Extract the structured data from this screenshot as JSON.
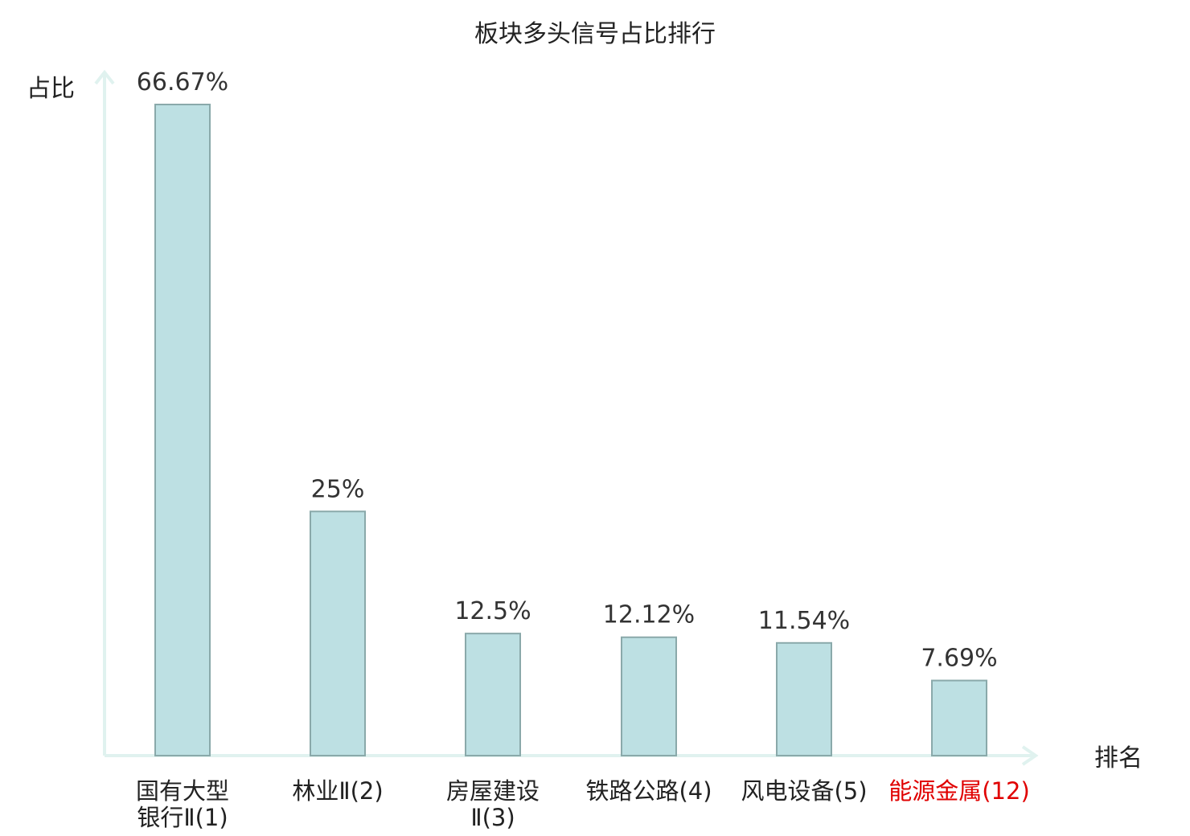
{
  "chart_data": {
    "type": "bar",
    "title": "板块多头信号占比排行",
    "xlabel": "排名",
    "ylabel": "占比",
    "ylim": [
      0,
      70
    ],
    "grid": false,
    "categories": [
      "国有大型银行Ⅱ(1)",
      "林业Ⅱ(2)",
      "房屋建设Ⅱ(3)",
      "铁路公路(4)",
      "风电设备(5)",
      "能源金属(12)"
    ],
    "values": [
      66.67,
      25,
      12.5,
      12.12,
      11.54,
      7.69
    ],
    "value_labels": [
      "66.67%",
      "25%",
      "12.5%",
      "12.12%",
      "11.54%",
      "7.69%"
    ],
    "highlighted_category_index": 5
  },
  "colors": {
    "bar_fill": "#bde0e3",
    "bar_stroke": "#8aa9aa",
    "axis": "#e0f2ef",
    "highlight_text": "#e00000",
    "text": "#222222"
  }
}
